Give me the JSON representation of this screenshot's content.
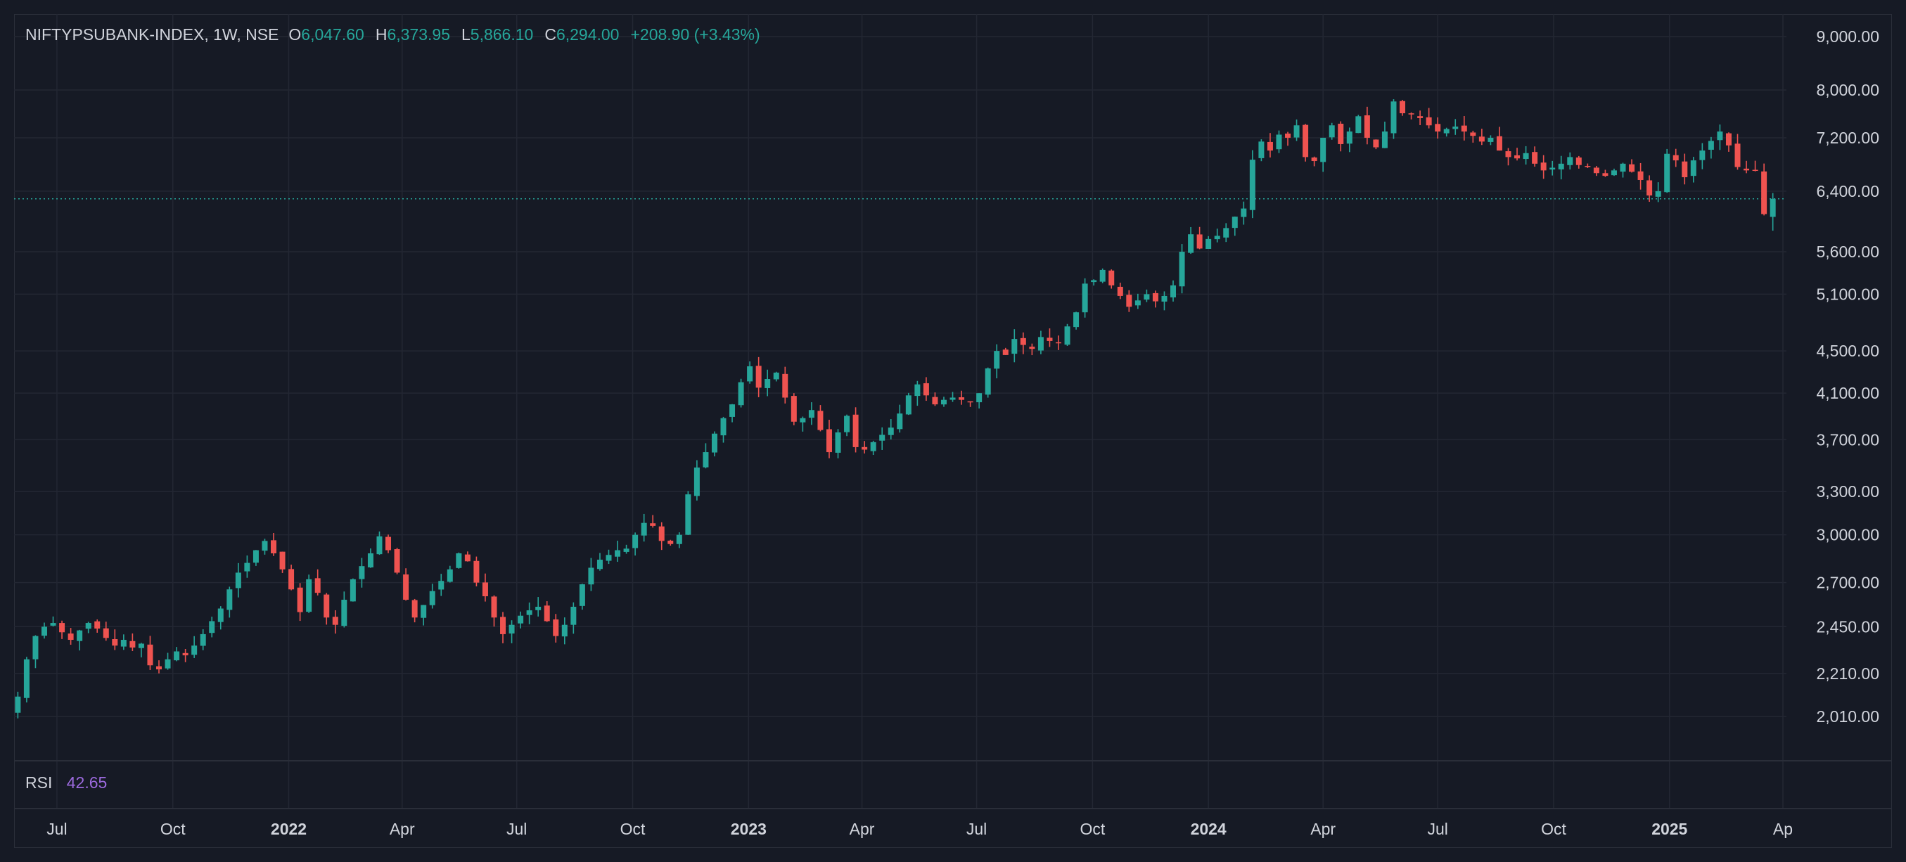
{
  "legend": {
    "symbol": "NIFTYPSUBANK-INDEX, 1W, NSE",
    "open_label": "O",
    "open": "6,047.60",
    "high_label": "H",
    "high": "6,373.95",
    "low_label": "L",
    "low": "5,866.10",
    "close_label": "C",
    "close": "6,294.00",
    "change": "+208.90 (+3.43%)"
  },
  "rsi": {
    "label": "RSI",
    "value": "42.65"
  },
  "colors": {
    "background": "#161a25",
    "grid": "#232733",
    "up": "#26a69a",
    "down": "#ef5350",
    "text": "#d1d4dc",
    "rsi": "#9c6ade",
    "price_line": "#26a69a"
  },
  "chart_data": {
    "type": "candlestick",
    "interval": "1W",
    "scale": "log",
    "current_price": 6294.0,
    "ylim": [
      1800,
      9400
    ],
    "y_ticks": [
      {
        "value": 9000,
        "label": "9,000.00"
      },
      {
        "value": 8000,
        "label": "8,000.00"
      },
      {
        "value": 7200,
        "label": "7,200.00"
      },
      {
        "value": 6400,
        "label": "6,400.00"
      },
      {
        "value": 5600,
        "label": "5,600.00"
      },
      {
        "value": 5100,
        "label": "5,100.00"
      },
      {
        "value": 4500,
        "label": "4,500.00"
      },
      {
        "value": 4100,
        "label": "4,100.00"
      },
      {
        "value": 3700,
        "label": "3,700.00"
      },
      {
        "value": 3300,
        "label": "3,300.00"
      },
      {
        "value": 3000,
        "label": "3,000.00"
      },
      {
        "value": 2700,
        "label": "2,700.00"
      },
      {
        "value": 2450,
        "label": "2,450.00"
      },
      {
        "value": 2210,
        "label": "2,210.00"
      },
      {
        "value": 2010,
        "label": "2,010.00"
      }
    ],
    "x_ticks": [
      {
        "date": "2021-07-01",
        "label": "Jul",
        "bold": false
      },
      {
        "date": "2021-10-01",
        "label": "Oct",
        "bold": false
      },
      {
        "date": "2022-01-01",
        "label": "2022",
        "bold": true
      },
      {
        "date": "2022-04-01",
        "label": "Apr",
        "bold": false
      },
      {
        "date": "2022-07-01",
        "label": "Jul",
        "bold": false
      },
      {
        "date": "2022-10-01",
        "label": "Oct",
        "bold": false
      },
      {
        "date": "2023-01-01",
        "label": "2023",
        "bold": true
      },
      {
        "date": "2023-04-01",
        "label": "Apr",
        "bold": false
      },
      {
        "date": "2023-07-01",
        "label": "Jul",
        "bold": false
      },
      {
        "date": "2023-10-01",
        "label": "Oct",
        "bold": false
      },
      {
        "date": "2024-01-01",
        "label": "2024",
        "bold": true
      },
      {
        "date": "2024-04-01",
        "label": "Apr",
        "bold": false
      },
      {
        "date": "2024-07-01",
        "label": "Jul",
        "bold": false
      },
      {
        "date": "2024-10-01",
        "label": "Oct",
        "bold": false
      },
      {
        "date": "2025-01-01",
        "label": "2025",
        "bold": true
      },
      {
        "date": "2025-04-01",
        "label": "Ap",
        "bold": false
      }
    ],
    "x_range": [
      "2021-05-28",
      "2025-04-01"
    ],
    "first_candle_date": "2021-05-31",
    "weekly_close_path": [
      2100,
      2280,
      2400,
      2450,
      2470,
      2420,
      2380,
      2430,
      2470,
      2440,
      2390,
      2350,
      2380,
      2340,
      2360,
      2250,
      2230,
      2280,
      2320,
      2300,
      2350,
      2410,
      2480,
      2550,
      2660,
      2760,
      2820,
      2900,
      2960,
      2880,
      2780,
      2660,
      2530,
      2720,
      2640,
      2500,
      2460,
      2600,
      2720,
      2800,
      2880,
      2990,
      2900,
      2760,
      2600,
      2500,
      2570,
      2650,
      2710,
      2780,
      2880,
      2830,
      2700,
      2620,
      2500,
      2410,
      2460,
      2510,
      2540,
      2560,
      2480,
      2400,
      2460,
      2560,
      2690,
      2790,
      2840,
      2870,
      2900,
      2910,
      3000,
      3080,
      3060,
      2960,
      2940,
      3000,
      3280,
      3480,
      3600,
      3750,
      3880,
      4000,
      4200,
      4350,
      4150,
      4230,
      4290,
      4060,
      3850,
      3880,
      3950,
      3780,
      3600,
      3760,
      3900,
      3640,
      3620,
      3680,
      3740,
      3800,
      3920,
      4080,
      4180,
      4080,
      4000,
      4040,
      4060,
      4040,
      4020,
      4100,
      4330,
      4500,
      4460,
      4620,
      4560,
      4520,
      4640,
      4600,
      4580,
      4750,
      4900,
      5220,
      5260,
      5380,
      5200,
      5080,
      4960,
      5030,
      5100,
      5020,
      5080,
      5200,
      5600,
      5820,
      5640,
      5760,
      5800,
      5900,
      6050,
      6160,
      6860,
      7140,
      7000,
      7250,
      7200,
      7400,
      6900,
      6840,
      7200,
      7400,
      7100,
      7300,
      7550,
      7200,
      7050,
      7300,
      7800,
      7600,
      7580,
      7520,
      7400,
      7300,
      7340,
      7380,
      7300,
      7230,
      7140,
      7200,
      7000,
      6900,
      6880,
      6960,
      6800,
      6700,
      6740,
      6800,
      6900,
      6780,
      6760,
      6660,
      6620,
      6700,
      6800,
      6680,
      6560,
      6340,
      6400,
      6950,
      6850,
      6600,
      6850,
      7000,
      7150,
      7300,
      7080,
      6750,
      6700,
      6700,
      6085,
      6294
    ]
  }
}
